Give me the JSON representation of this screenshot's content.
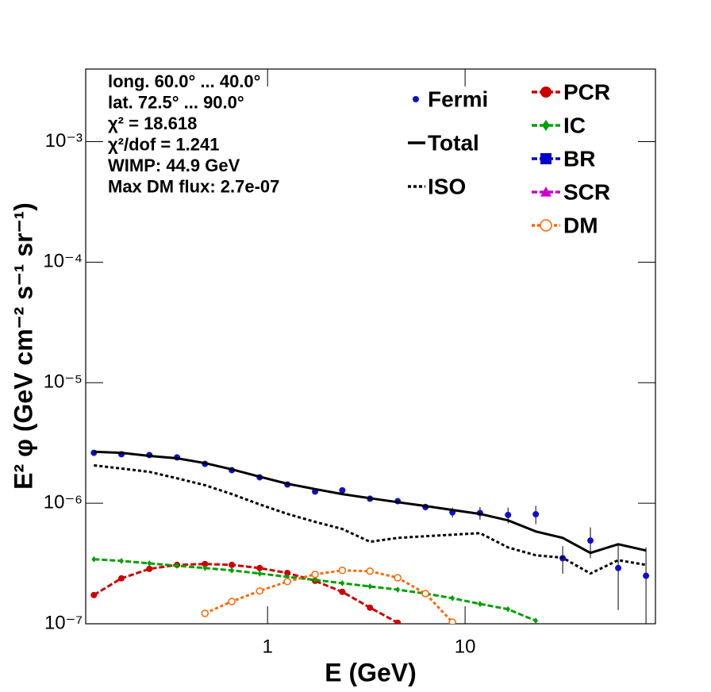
{
  "chart_data": {
    "type": "line",
    "logx": true,
    "logy": true,
    "xlabel": "E (GeV)",
    "ylabel": "E² φ (GeV cm⁻² s⁻¹ sr⁻¹)",
    "xlim": [
      0.12,
      92
    ],
    "ylim": [
      1e-07,
      0.004
    ],
    "xticks": [
      1,
      10
    ],
    "yticks": [
      {
        "value": 1e-07,
        "label": "10⁻⁷"
      },
      {
        "value": 1e-06,
        "label": "10⁻⁶"
      },
      {
        "value": 1e-05,
        "label": "10⁻⁵"
      },
      {
        "value": 0.0001,
        "label": "10⁻⁴"
      },
      {
        "value": 0.001,
        "label": "10⁻³"
      }
    ],
    "annotations": [
      "long. 60.0° ... 40.0°",
      "lat. 72.5° ... 90.0°",
      "χ² = 18.618",
      "χ²/dof = 1.241",
      "WIMP: 44.9 GeV",
      "Max DM flux: 2.7e-07"
    ],
    "x": [
      0.132,
      0.182,
      0.252,
      0.348,
      0.482,
      0.659,
      0.912,
      1.26,
      1.74,
      2.39,
      3.3,
      4.56,
      6.3,
      8.63,
      11.9,
      16.5,
      22.8,
      31.2,
      43.1,
      59.6,
      82.4
    ],
    "series": [
      {
        "name": "Fermi",
        "color": "#1010c8",
        "style": "points",
        "values": [
          2.62e-06,
          2.55e-06,
          2.51e-06,
          2.4e-06,
          2.12e-06,
          1.88e-06,
          1.64e-06,
          1.43e-06,
          1.25e-06,
          1.28e-06,
          1.09e-06,
          1.04e-06,
          9.3e-07,
          8.4e-07,
          8.3e-07,
          8e-07,
          8.1e-07,
          3.5e-07,
          4.9e-07,
          2.9e-07,
          2.5e-07
        ],
        "errors": [
          3e-08,
          3e-08,
          3e-08,
          3e-08,
          3e-08,
          3e-08,
          3e-08,
          3e-08,
          3e-08,
          3e-08,
          4e-08,
          4e-08,
          6e-08,
          8e-08,
          1e-07,
          1.2e-07,
          1.4e-07,
          9e-08,
          1.4e-07,
          1.6e-07,
          1.8e-07
        ]
      },
      {
        "name": "Total",
        "color": "#000000",
        "style": "solid",
        "values": [
          2.67e-06,
          2.62e-06,
          2.47e-06,
          2.36e-06,
          2.15e-06,
          1.91e-06,
          1.66e-06,
          1.45e-06,
          1.31e-06,
          1.19e-06,
          1.1e-06,
          1.02e-06,
          9.48e-07,
          8.79e-07,
          8.15e-07,
          7.21e-07,
          5.83e-07,
          5.16e-07,
          3.87e-07,
          4.57e-07,
          4.05e-07
        ]
      },
      {
        "name": "ISO",
        "color": "#000000",
        "style": "dotted",
        "values": [
          2.06e-06,
          1.94e-06,
          1.82e-06,
          1.61e-06,
          1.41e-06,
          1.19e-06,
          9.77e-07,
          8.15e-07,
          7e-07,
          6.11e-07,
          4.79e-07,
          5.16e-07,
          5.32e-07,
          5.48e-07,
          5.65e-07,
          4.3e-07,
          3.7e-07,
          3.53e-07,
          2.61e-07,
          3.37e-07,
          3.08e-07
        ]
      },
      {
        "name": "PCR",
        "color": "#cc0000",
        "style": "dashed",
        "marker": "circle",
        "values": [
          1.73e-07,
          2.38e-07,
          2.85e-07,
          3.08e-07,
          3.13e-07,
          3.08e-07,
          2.9e-07,
          2.64e-07,
          2.27e-07,
          1.84e-07,
          1.36e-07,
          1.02e-07,
          null,
          null,
          null,
          null,
          null,
          null,
          null,
          null,
          null
        ]
      },
      {
        "name": "IC",
        "color": "#00a000",
        "style": "dashed",
        "marker": "diamond",
        "values": [
          3.43e-07,
          3.32e-07,
          3.17e-07,
          3.03e-07,
          2.9e-07,
          2.77e-07,
          2.61e-07,
          2.45e-07,
          2.31e-07,
          2.17e-07,
          2.04e-07,
          1.92e-07,
          1.78e-07,
          1.63e-07,
          1.46e-07,
          1.32e-07,
          1.06e-07,
          null,
          null,
          null,
          null
        ]
      },
      {
        "name": "BR",
        "color": "#0000cc",
        "style": "dashed",
        "marker": "square",
        "values": [
          null,
          null,
          null,
          null,
          null,
          null,
          null,
          null,
          null,
          null,
          null,
          null,
          null,
          null,
          null,
          null,
          null,
          null,
          null,
          null,
          null
        ]
      },
      {
        "name": "SCR",
        "color": "#cc00cc",
        "style": "dashed",
        "marker": "triangle",
        "values": [
          null,
          null,
          null,
          null,
          null,
          null,
          null,
          null,
          null,
          null,
          null,
          null,
          null,
          null,
          null,
          null,
          null,
          null,
          null,
          null,
          null
        ]
      },
      {
        "name": "DM",
        "color": "#ff6600",
        "style": "dotted",
        "marker": "open-circle",
        "values": [
          null,
          null,
          null,
          null,
          1.22e-07,
          1.53e-07,
          1.87e-07,
          2.24e-07,
          2.57e-07,
          2.77e-07,
          2.73e-07,
          2.41e-07,
          1.78e-07,
          1.03e-07,
          null,
          null,
          null,
          null,
          null,
          null,
          null
        ]
      }
    ]
  }
}
